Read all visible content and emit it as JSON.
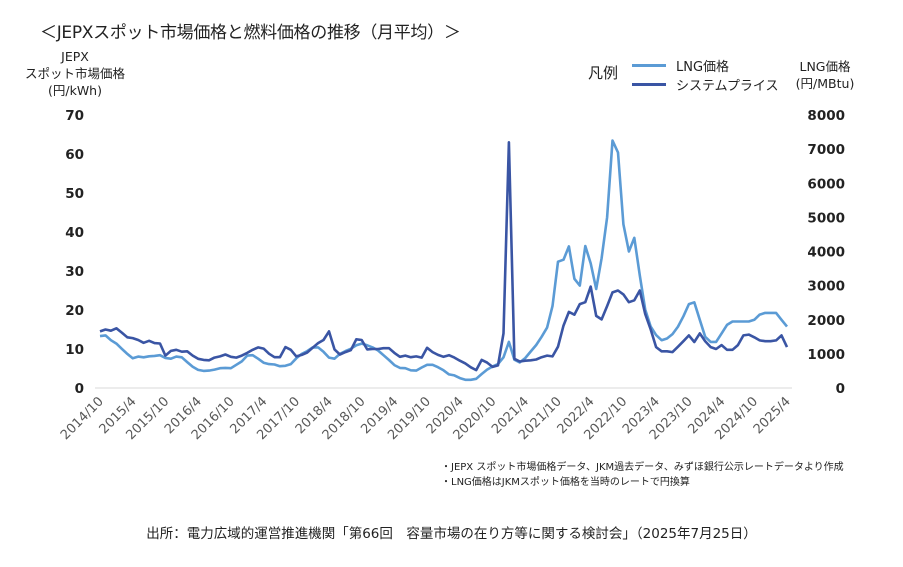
{
  "title": "＜JEPXスポット市場価格と燃料価格の推移（月平均）＞",
  "legend": {
    "label": "凡例",
    "items": [
      {
        "name": "LNG価格",
        "color": "#5B9BD5"
      },
      {
        "name": "システムプライス",
        "color": "#3A55A4"
      }
    ]
  },
  "notes": [
    "・JEPX スポット市場価格データ、JKM過去データ、みずほ銀行公示レートデータより作成",
    "・LNG価格はJKMスポット価格を当時のレートで円換算"
  ],
  "source": "出所：電力広域的運営推進機関「第66回　容量市場の在り方等に関する検討会」（2025年7月25日）",
  "chart_data": {
    "type": "line",
    "title": "＜JEPXスポット市場価格と燃料価格の推移（月平均）＞",
    "x_start": "2014/10",
    "x_end": "2025/4",
    "x_frequency": "monthly",
    "x_tick_labels": [
      "2014/10",
      "2015/4",
      "2015/10",
      "2016/4",
      "2016/10",
      "2017/4",
      "2017/10",
      "2018/4",
      "2018/10",
      "2019/4",
      "2019/10",
      "2020/4",
      "2020/10",
      "2021/4",
      "2021/10",
      "2022/4",
      "2022/10",
      "2023/4",
      "2023/10",
      "2024/4",
      "2024/10",
      "2025/4"
    ],
    "ylabel_left": [
      "JEPX",
      "スポット市場価格",
      "(円/kWh)"
    ],
    "ylabel_right": [
      "LNG価格",
      "(円/MBtu)"
    ],
    "ylim_left": [
      0,
      70
    ],
    "ylim_right": [
      0,
      8000
    ],
    "yticks_left": [
      "0",
      "10",
      "20",
      "30",
      "40",
      "50",
      "60",
      "70"
    ],
    "yticks_right": [
      "0",
      "1000",
      "2000",
      "3000",
      "4000",
      "5000",
      "6000",
      "7000",
      "8000"
    ],
    "legend_position": "top-right",
    "series": [
      {
        "name": "LNG価格",
        "axis": "right",
        "color": "#5B9BD5",
        "values": [
          1520,
          1540,
          1400,
          1300,
          1150,
          1000,
          870,
          920,
          900,
          930,
          940,
          960,
          880,
          860,
          920,
          900,
          760,
          620,
          530,
          500,
          510,
          540,
          580,
          590,
          580,
          680,
          780,
          950,
          960,
          860,
          740,
          700,
          690,
          640,
          650,
          700,
          870,
          1000,
          1080,
          1190,
          1190,
          1060,
          890,
          860,
          1000,
          1080,
          1150,
          1250,
          1300,
          1250,
          1190,
          1100,
          960,
          820,
          670,
          590,
          580,
          520,
          510,
          600,
          680,
          680,
          610,
          520,
          400,
          370,
          290,
          240,
          240,
          270,
          410,
          540,
          630,
          700,
          900,
          1350,
          830,
          750,
          880,
          1070,
          1260,
          1500,
          1770,
          2400,
          3700,
          3760,
          4150,
          3200,
          3000,
          4160,
          3650,
          2900,
          3800,
          5000,
          7250,
          6900,
          4800,
          4000,
          4400,
          3300,
          2300,
          1800,
          1550,
          1400,
          1450,
          1580,
          1800,
          2100,
          2460,
          2510,
          2000,
          1500,
          1350,
          1350,
          1600,
          1850,
          1950,
          1950,
          1950,
          1950,
          2000,
          2150,
          2200,
          2200,
          2200,
          2000,
          1800
        ]
      },
      {
        "name": "システムプライス",
        "axis": "left",
        "color": "#3A55A4",
        "values": [
          14.5,
          15,
          14.7,
          15.3,
          14.2,
          13,
          12.8,
          12.3,
          11.6,
          12.1,
          11.5,
          11.4,
          8.3,
          9.5,
          9.8,
          9.3,
          9.4,
          8.3,
          7.5,
          7.2,
          7.1,
          7.8,
          8.1,
          8.6,
          8.0,
          7.8,
          8.3,
          9,
          9.8,
          10.4,
          10.1,
          8.8,
          7.9,
          7.9,
          10.5,
          9.8,
          8.1,
          8.5,
          9.1,
          10.3,
          11.5,
          12.3,
          14.5,
          9.9,
          8.6,
          9.2,
          9.7,
          12.5,
          12.3,
          9.9,
          10,
          10,
          10.2,
          10.2,
          9,
          8,
          8.3,
          7.9,
          8.1,
          7.8,
          10.3,
          9.2,
          8.5,
          8,
          8.4,
          7.8,
          7,
          6.3,
          5.3,
          4.6,
          7.2,
          6.5,
          5.4,
          5.8,
          14,
          63,
          7.5,
          6.8,
          7,
          7.1,
          7.3,
          7.9,
          8.3,
          8.1,
          10.6,
          16,
          19.5,
          18.8,
          21.5,
          22,
          26,
          18.5,
          17.6,
          21,
          24.5,
          25,
          24,
          22,
          22.5,
          25,
          19,
          15,
          10.5,
          9.4,
          9.4,
          9.2,
          10.6,
          12,
          13.5,
          11.8,
          14,
          12,
          10.5,
          10,
          11,
          9.8,
          9.8,
          11,
          13.5,
          13.7,
          13,
          12.2,
          12,
          12,
          12.2,
          13.5,
          10.5
        ]
      }
    ]
  }
}
